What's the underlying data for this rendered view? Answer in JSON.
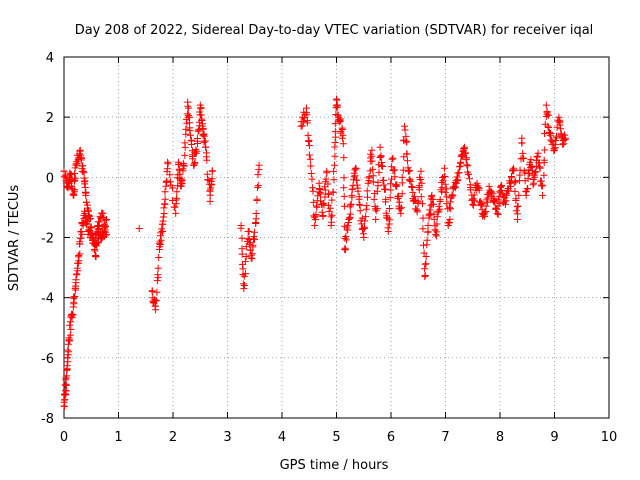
{
  "chart_data": {
    "type": "scatter",
    "title": "Day 208 of 2022, Sidereal Day-to-day VTEC variation (SDTVAR) for receiver iqal",
    "xlabel": "GPS time / hours",
    "ylabel": "SDTVAR / TECUs",
    "xlim": [
      0,
      10
    ],
    "ylim": [
      -8,
      4
    ],
    "xticks": [
      "0",
      "1",
      "2",
      "3",
      "4",
      "5",
      "6",
      "7",
      "8",
      "9",
      "10"
    ],
    "yticks": [
      "-8",
      "-6",
      "-4",
      "-2",
      "0",
      "2",
      "4"
    ],
    "grid": true,
    "marker": "+",
    "color": "#ff0000",
    "series": [
      {
        "name": "SDTVAR",
        "anchors": [
          [
            0.0,
            -7.6
          ],
          [
            0.02,
            -7.2
          ],
          [
            0.05,
            -6.6
          ],
          [
            0.08,
            -5.8
          ],
          [
            0.12,
            -4.8
          ],
          [
            0.18,
            -4.2
          ],
          [
            0.22,
            -3.5
          ],
          [
            0.27,
            -2.6
          ],
          [
            0.32,
            -1.8
          ],
          [
            0.38,
            -1.2
          ],
          [
            0.45,
            -1.8
          ],
          [
            0.55,
            -2.2
          ],
          [
            0.62,
            -1.6
          ],
          [
            0.7,
            -1.2
          ],
          [
            0.78,
            -1.9
          ],
          [
            0.0,
            0.2
          ],
          [
            0.06,
            -0.3
          ],
          [
            0.12,
            0.1
          ],
          [
            0.18,
            -0.6
          ],
          [
            0.22,
            0.4
          ],
          [
            0.3,
            0.9
          ],
          [
            0.36,
            0.2
          ],
          [
            0.4,
            -0.6
          ],
          [
            0.46,
            -1.3
          ],
          [
            0.52,
            -1.9
          ],
          [
            0.58,
            -2.6
          ],
          [
            0.64,
            -1.7
          ],
          [
            0.7,
            -2.0
          ],
          [
            0.78,
            -1.4
          ],
          [
            1.38,
            -1.7
          ],
          [
            1.62,
            -3.8
          ],
          [
            1.68,
            -4.4
          ],
          [
            1.75,
            -2.4
          ],
          [
            1.8,
            -1.8
          ],
          [
            1.85,
            -0.9
          ],
          [
            1.9,
            0.5
          ],
          [
            2.05,
            -1.2
          ],
          [
            2.1,
            0.5
          ],
          [
            2.15,
            -0.3
          ],
          [
            2.2,
            0.4
          ],
          [
            2.27,
            2.5
          ],
          [
            2.32,
            1.4
          ],
          [
            2.38,
            0.4
          ],
          [
            2.45,
            1.2
          ],
          [
            2.5,
            2.4
          ],
          [
            2.55,
            1.6
          ],
          [
            2.6,
            1.0
          ],
          [
            2.68,
            -0.8
          ],
          [
            2.72,
            0.2
          ],
          [
            3.25,
            -1.6
          ],
          [
            3.3,
            -3.7
          ],
          [
            3.38,
            -1.8
          ],
          [
            3.45,
            -2.7
          ],
          [
            3.52,
            -1.5
          ],
          [
            3.58,
            0.4
          ],
          [
            4.35,
            1.7
          ],
          [
            4.45,
            2.3
          ],
          [
            4.52,
            0.6
          ],
          [
            4.6,
            -1.6
          ],
          [
            4.68,
            -0.2
          ],
          [
            4.75,
            -1.3
          ],
          [
            4.82,
            0.2
          ],
          [
            4.9,
            -1.6
          ],
          [
            4.97,
            0.7
          ],
          [
            5.0,
            2.6
          ],
          [
            5.05,
            1.9
          ],
          [
            5.12,
            1.4
          ],
          [
            5.15,
            -2.4
          ],
          [
            5.22,
            -1.5
          ],
          [
            5.28,
            -0.6
          ],
          [
            5.35,
            0.3
          ],
          [
            5.42,
            -0.9
          ],
          [
            5.5,
            -2.0
          ],
          [
            5.58,
            -0.2
          ],
          [
            5.65,
            0.9
          ],
          [
            5.72,
            -1.4
          ],
          [
            5.8,
            1.0
          ],
          [
            5.88,
            -0.4
          ],
          [
            5.95,
            -1.8
          ],
          [
            6.02,
            0.6
          ],
          [
            6.1,
            -0.3
          ],
          [
            6.18,
            -1.2
          ],
          [
            6.25,
            1.7
          ],
          [
            6.32,
            0.2
          ],
          [
            6.4,
            -0.5
          ],
          [
            6.48,
            -1.1
          ],
          [
            6.55,
            0.2
          ],
          [
            6.62,
            -3.3
          ],
          [
            6.68,
            -1.6
          ],
          [
            6.75,
            -0.6
          ],
          [
            6.82,
            -1.9
          ],
          [
            6.9,
            -0.8
          ],
          [
            6.98,
            0.3
          ],
          [
            7.05,
            -1.6
          ],
          [
            7.12,
            -0.6
          ],
          [
            7.2,
            -0.2
          ],
          [
            7.28,
            0.5
          ],
          [
            7.35,
            1.0
          ],
          [
            7.42,
            0.1
          ],
          [
            7.5,
            -0.9
          ],
          [
            7.58,
            -0.2
          ],
          [
            7.65,
            -0.9
          ],
          [
            7.72,
            -1.3
          ],
          [
            7.8,
            -0.3
          ],
          [
            7.88,
            -0.8
          ],
          [
            7.95,
            -1.2
          ],
          [
            8.02,
            -0.3
          ],
          [
            8.1,
            -0.9
          ],
          [
            8.18,
            -0.2
          ],
          [
            8.25,
            0.3
          ],
          [
            8.32,
            -1.4
          ],
          [
            8.4,
            1.3
          ],
          [
            8.48,
            -0.6
          ],
          [
            8.55,
            0.5
          ],
          [
            8.62,
            -0.2
          ],
          [
            8.7,
            0.8
          ],
          [
            8.78,
            -0.6
          ],
          [
            8.85,
            2.4
          ],
          [
            8.92,
            1.4
          ],
          [
            9.0,
            0.9
          ],
          [
            9.08,
            2.0
          ],
          [
            9.15,
            1.1
          ],
          [
            9.2,
            1.3
          ]
        ]
      }
    ]
  }
}
